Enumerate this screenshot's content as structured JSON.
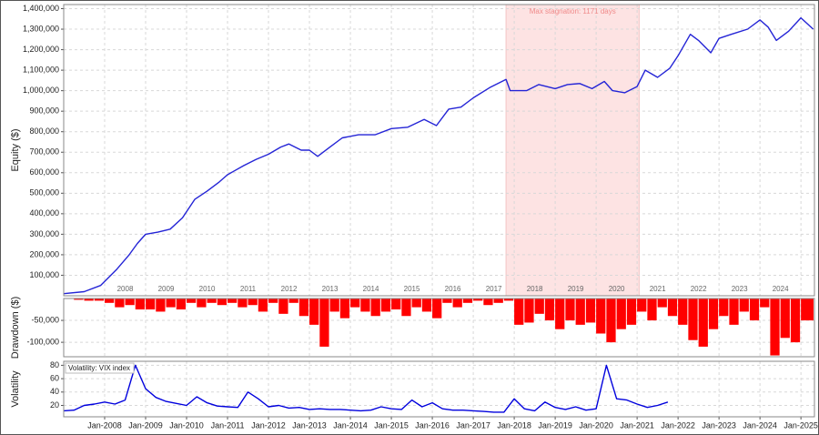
{
  "chart_data": [
    {
      "type": "line",
      "ylabel": "Equity ($)",
      "xlim": [
        2007.0,
        2025.33
      ],
      "ylim": [
        0,
        1420000
      ],
      "yticks": [
        {
          "value": 100000,
          "label": "100,000"
        },
        {
          "value": 200000,
          "label": "200,000"
        },
        {
          "value": 300000,
          "label": "300,000"
        },
        {
          "value": 400000,
          "label": "400,000"
        },
        {
          "value": 500000,
          "label": "500,000"
        },
        {
          "value": 600000,
          "label": "600,000"
        },
        {
          "value": 700000,
          "label": "700,000"
        },
        {
          "value": 800000,
          "label": "800,000"
        },
        {
          "value": 900000,
          "label": "900,000"
        },
        {
          "value": 1000000,
          "label": "1,000,000"
        },
        {
          "value": 1100000,
          "label": "1,100,000"
        },
        {
          "value": 1200000,
          "label": "1,200,000"
        },
        {
          "value": 1300000,
          "label": "1,300,000"
        },
        {
          "value": 1400000,
          "label": "1,400,000"
        }
      ],
      "xticks": [
        {
          "value": 2008.5,
          "label": "2008"
        },
        {
          "value": 2009.5,
          "label": "2009"
        },
        {
          "value": 2010.5,
          "label": "2010"
        },
        {
          "value": 2011.5,
          "label": "2011"
        },
        {
          "value": 2012.5,
          "label": "2012"
        },
        {
          "value": 2013.5,
          "label": "2013"
        },
        {
          "value": 2014.5,
          "label": "2014"
        },
        {
          "value": 2015.5,
          "label": "2015"
        },
        {
          "value": 2016.5,
          "label": "2016"
        },
        {
          "value": 2017.5,
          "label": "2017"
        },
        {
          "value": 2018.5,
          "label": "2018"
        },
        {
          "value": 2019.5,
          "label": "2019"
        },
        {
          "value": 2020.5,
          "label": "2020"
        },
        {
          "value": 2021.5,
          "label": "2021"
        },
        {
          "value": 2022.5,
          "label": "2022"
        },
        {
          "value": 2023.5,
          "label": "2023"
        },
        {
          "value": 2024.5,
          "label": "2024"
        }
      ],
      "xtick_labels_inside": true,
      "grid": true,
      "stagnation": {
        "start": 2017.8,
        "end": 2021.05,
        "label": "Max stagnation: 1171 days",
        "color": "#fde3e3"
      },
      "x": [
        2007.0,
        2007.5,
        2007.9,
        2008.3,
        2008.6,
        2008.8,
        2009.0,
        2009.3,
        2009.6,
        2009.9,
        2010.2,
        2010.5,
        2010.8,
        2011.0,
        2011.4,
        2011.7,
        2012.0,
        2012.3,
        2012.5,
        2012.8,
        2013.0,
        2013.2,
        2013.5,
        2013.8,
        2014.2,
        2014.6,
        2015.0,
        2015.4,
        2015.8,
        2016.1,
        2016.4,
        2016.7,
        2017.0,
        2017.4,
        2017.8,
        2017.9,
        2018.3,
        2018.6,
        2019.0,
        2019.3,
        2019.6,
        2019.9,
        2020.2,
        2020.4,
        2020.7,
        2021.0,
        2021.2,
        2021.5,
        2021.8,
        2022.0,
        2022.3,
        2022.5,
        2022.8,
        2023.0,
        2023.3,
        2023.7,
        2024.0,
        2024.2,
        2024.4,
        2024.7,
        2025.0,
        2025.3
      ],
      "series": [
        {
          "color": "#2424d6",
          "values": [
            10000,
            20000,
            50000,
            130000,
            200000,
            255000,
            300000,
            310000,
            325000,
            380000,
            470000,
            510000,
            555000,
            590000,
            635000,
            665000,
            690000,
            725000,
            740000,
            710000,
            710000,
            680000,
            725000,
            770000,
            785000,
            785000,
            815000,
            822000,
            860000,
            830000,
            910000,
            920000,
            965000,
            1015000,
            1055000,
            1000000,
            1000000,
            1030000,
            1010000,
            1030000,
            1035000,
            1010000,
            1045000,
            1000000,
            990000,
            1020000,
            1100000,
            1065000,
            1110000,
            1170000,
            1275000,
            1245000,
            1185000,
            1255000,
            1275000,
            1300000,
            1345000,
            1310000,
            1245000,
            1290000,
            1355000,
            1300000
          ]
        }
      ]
    },
    {
      "type": "bar",
      "ylabel": "Drawdown ($)",
      "xlim": [
        2007.0,
        2025.33
      ],
      "ylim": [
        -133000,
        0
      ],
      "yticks": [
        {
          "value": -50000,
          "label": "-50,000"
        },
        {
          "value": -100000,
          "label": "-100,000"
        }
      ],
      "grid": true,
      "x": [
        2007.0,
        2007.25,
        2007.5,
        2007.75,
        2008.0,
        2008.25,
        2008.5,
        2008.75,
        2009.0,
        2009.25,
        2009.5,
        2009.75,
        2010.0,
        2010.25,
        2010.5,
        2010.75,
        2011.0,
        2011.25,
        2011.5,
        2011.75,
        2012.0,
        2012.25,
        2012.5,
        2012.75,
        2013.0,
        2013.25,
        2013.5,
        2013.75,
        2014.0,
        2014.25,
        2014.5,
        2014.75,
        2015.0,
        2015.25,
        2015.5,
        2015.75,
        2016.0,
        2016.25,
        2016.5,
        2016.75,
        2017.0,
        2017.25,
        2017.5,
        2017.75,
        2018.0,
        2018.25,
        2018.5,
        2018.75,
        2019.0,
        2019.25,
        2019.5,
        2019.75,
        2020.0,
        2020.25,
        2020.5,
        2020.75,
        2021.0,
        2021.25,
        2021.5,
        2021.75,
        2022.0,
        2022.25,
        2022.5,
        2022.75,
        2023.0,
        2023.25,
        2023.5,
        2023.75,
        2024.0,
        2024.25,
        2024.5,
        2024.75,
        2025.0
      ],
      "series": [
        {
          "color": "#ff0000",
          "values": [
            0,
            -3000,
            -5000,
            -5000,
            -10000,
            -20000,
            -15000,
            -25000,
            -25000,
            -30000,
            -20000,
            -25000,
            -10000,
            -20000,
            -10000,
            -15000,
            -10000,
            -20000,
            -15000,
            -30000,
            -10000,
            -35000,
            -10000,
            -40000,
            -60000,
            -110000,
            -30000,
            -45000,
            -20000,
            -30000,
            -40000,
            -30000,
            -25000,
            -40000,
            -20000,
            -30000,
            -45000,
            -10000,
            -20000,
            -10000,
            -5000,
            -15000,
            -10000,
            -5000,
            -60000,
            -55000,
            -35000,
            -50000,
            -70000,
            -50000,
            -60000,
            -55000,
            -80000,
            -100000,
            -70000,
            -60000,
            -30000,
            -50000,
            -20000,
            -40000,
            -60000,
            -95000,
            -110000,
            -70000,
            -40000,
            -60000,
            -30000,
            -50000,
            -20000,
            -130000,
            -90000,
            -100000,
            -50000
          ]
        }
      ]
    },
    {
      "type": "line",
      "ylabel": "Volatility",
      "xlim": [
        2007.0,
        2025.33
      ],
      "ylim": [
        3,
        86
      ],
      "yticks": [
        20,
        40,
        60,
        80
      ],
      "xticks": [
        {
          "value": 2008,
          "label": "Jan-2008"
        },
        {
          "value": 2009,
          "label": "Jan-2009"
        },
        {
          "value": 2010,
          "label": "Jan-2010"
        },
        {
          "value": 2011,
          "label": "Jan-2011"
        },
        {
          "value": 2012,
          "label": "Jan-2012"
        },
        {
          "value": 2013,
          "label": "Jan-2013"
        },
        {
          "value": 2014,
          "label": "Jan-2014"
        },
        {
          "value": 2015,
          "label": "Jan-2015"
        },
        {
          "value": 2016,
          "label": "Jan-2016"
        },
        {
          "value": 2017,
          "label": "Jan-2017"
        },
        {
          "value": 2018,
          "label": "Jan-2018"
        },
        {
          "value": 2019,
          "label": "Jan-2019"
        },
        {
          "value": 2020,
          "label": "Jan-2020"
        },
        {
          "value": 2021,
          "label": "Jan-2021"
        },
        {
          "value": 2022,
          "label": "Jan-2022"
        },
        {
          "value": 2023,
          "label": "Jan-2023"
        },
        {
          "value": 2024,
          "label": "Jan-2024"
        },
        {
          "value": 2025,
          "label": "Jan-2025"
        }
      ],
      "grid": true,
      "legend": "upper left",
      "x": [
        2007.0,
        2007.25,
        2007.5,
        2007.75,
        2008.0,
        2008.25,
        2008.5,
        2008.75,
        2009.0,
        2009.25,
        2009.5,
        2009.75,
        2010.0,
        2010.25,
        2010.5,
        2010.75,
        2011.0,
        2011.25,
        2011.5,
        2011.75,
        2012.0,
        2012.25,
        2012.5,
        2012.75,
        2013.0,
        2013.25,
        2013.5,
        2013.75,
        2014.0,
        2014.25,
        2014.5,
        2014.75,
        2015.0,
        2015.25,
        2015.5,
        2015.75,
        2016.0,
        2016.25,
        2016.5,
        2016.75,
        2017.0,
        2017.25,
        2017.5,
        2017.75,
        2018.0,
        2018.25,
        2018.5,
        2018.75,
        2019.0,
        2019.25,
        2019.5,
        2019.75,
        2020.0,
        2020.25,
        2020.5,
        2020.75,
        2021.0,
        2021.25,
        2021.5,
        2021.75
      ],
      "series": [
        {
          "name": "Volatility: VIX index",
          "color": "#0000dd",
          "values": [
            12,
            13,
            20,
            22,
            25,
            22,
            28,
            80,
            45,
            32,
            26,
            23,
            20,
            33,
            24,
            19,
            18,
            17,
            40,
            30,
            18,
            20,
            16,
            17,
            14,
            15,
            14,
            14,
            13,
            12,
            13,
            18,
            15,
            14,
            28,
            18,
            24,
            15,
            13,
            13,
            12,
            11,
            10,
            10,
            30,
            15,
            12,
            25,
            17,
            14,
            18,
            13,
            15,
            80,
            30,
            28,
            22,
            17,
            20,
            25
          ]
        }
      ]
    }
  ]
}
